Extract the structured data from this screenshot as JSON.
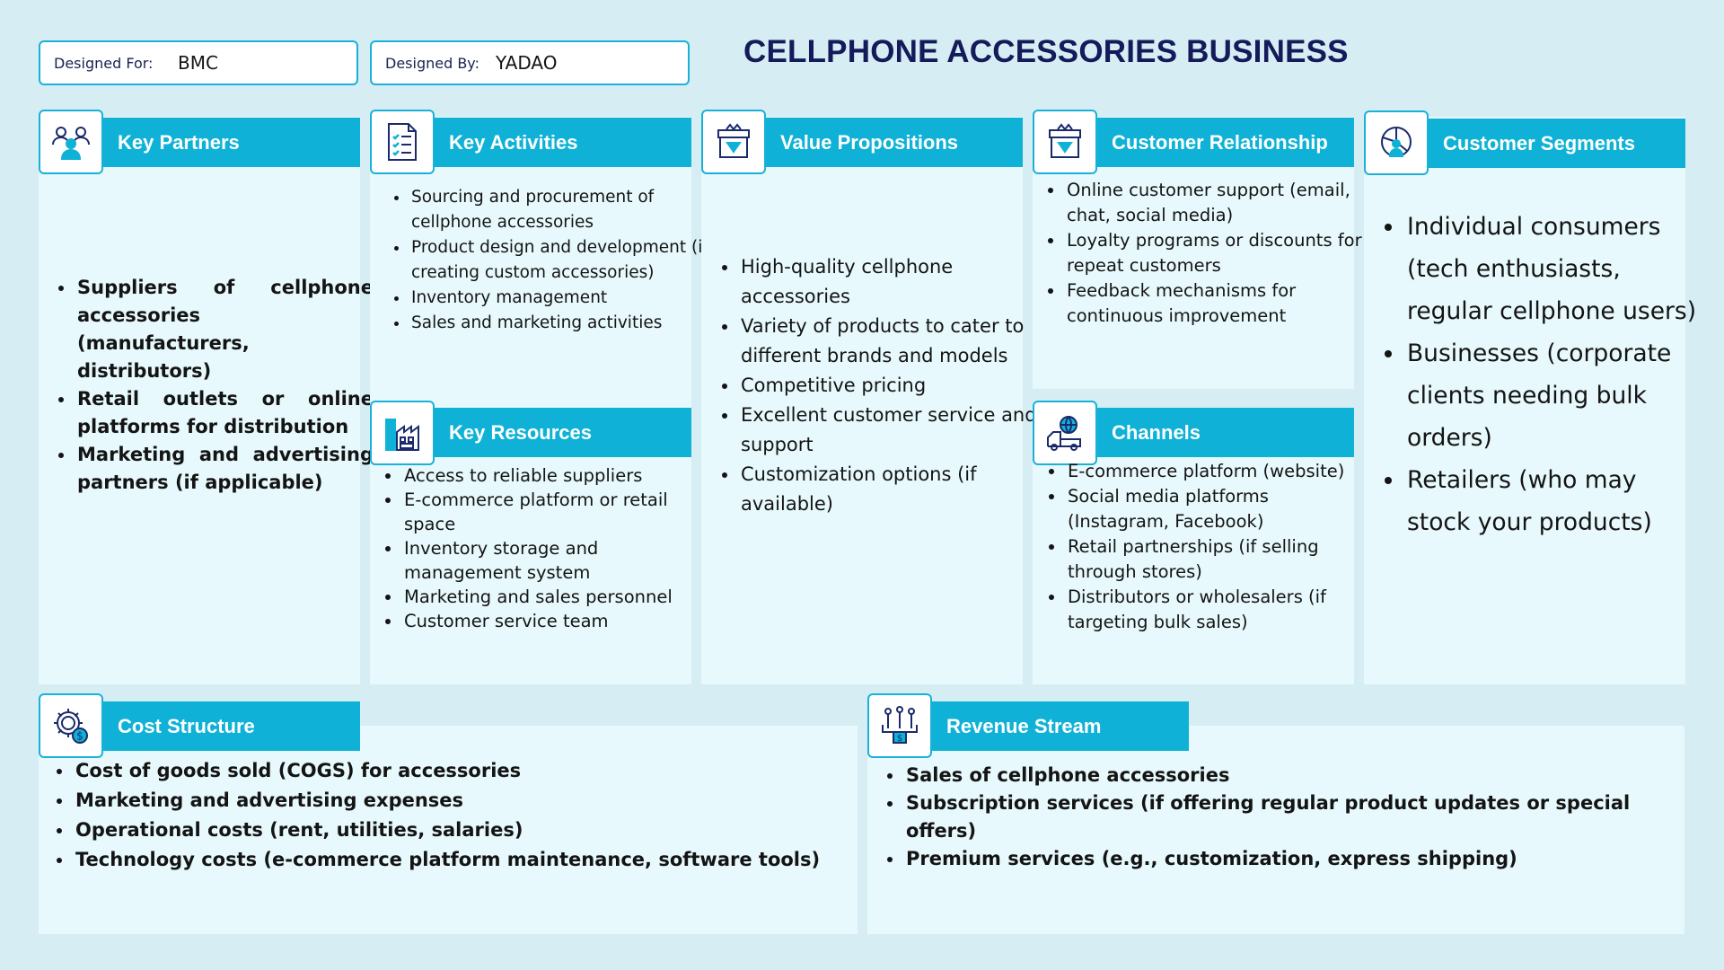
{
  "header": {
    "designed_for_label": "Designed For:",
    "designed_for_value": "BMC",
    "designed_by_label": "Designed By:",
    "designed_by_value": "YADAO",
    "title": "CELLPHONE ACCESSORIES BUSINESS"
  },
  "colors": {
    "accent": "#0fb2d6",
    "page_bg": "#d6eef3",
    "panel_bg": "#e7f9fc",
    "title": "#151a5a"
  },
  "key_partners": {
    "title": "Key Partners",
    "icon": "partners-icon",
    "items": [
      "Suppliers of cellphone accessories (manufacturers, distributors)",
      "Retail outlets or online platforms for distribution",
      "Marketing and advertising partners (if applicable)"
    ]
  },
  "key_activities": {
    "title": "Key Activities",
    "icon": "checklist-icon",
    "items": [
      "Sourcing and procurement of cellphone accessories",
      "Product design and development (if creating custom accessories)",
      "Inventory management",
      "Sales and marketing activities"
    ]
  },
  "key_resources": {
    "title": "Key Resources",
    "icon": "factory-icon",
    "items": [
      "Access to reliable suppliers",
      "E-commerce platform or retail space",
      "Inventory storage and management system",
      "Marketing and sales personnel",
      "Customer service team"
    ]
  },
  "value_propositions": {
    "title": "Value Propositions",
    "icon": "gift-diamond-icon",
    "items": [
      "High-quality cellphone accessories",
      "Variety of products to cater to different brands and models",
      "Competitive pricing",
      "Excellent customer service and support",
      "Customization options (if available)"
    ]
  },
  "customer_relationship": {
    "title": "Customer Relationship",
    "icon": "gift-diamond-icon",
    "items": [
      "Online customer support (email, chat, social media)",
      "Loyalty programs or discounts for repeat customers",
      "Feedback mechanisms for continuous improvement"
    ]
  },
  "channels": {
    "title": "Channels",
    "icon": "globe-truck-icon",
    "items": [
      "E-commerce platform (website)",
      "Social media platforms (Instagram, Facebook)",
      "Retail partnerships (if selling through stores)",
      "Distributors or wholesalers (if targeting bulk sales)"
    ]
  },
  "customer_segments": {
    "title": "Customer Segments",
    "icon": "pie-person-icon",
    "items": [
      "Individual consumers (tech enthusiasts, regular cellphone users)",
      "Businesses (corporate clients needing bulk orders)",
      "Retailers (who may stock your products)"
    ]
  },
  "cost_structure": {
    "title": "Cost Structure",
    "icon": "gear-dollar-icon",
    "items": [
      "Cost of goods sold (COGS) for accessories",
      "Marketing and advertising expenses",
      "Operational costs (rent, utilities, salaries)",
      "Technology costs (e-commerce platform maintenance, software tools)"
    ]
  },
  "revenue_stream": {
    "title": "Revenue Stream",
    "icon": "revenue-chart-icon",
    "items": [
      "Sales of cellphone accessories",
      "Subscription services (if offering regular product updates or special offers)",
      "Premium services (e.g., customization, express shipping)"
    ]
  }
}
